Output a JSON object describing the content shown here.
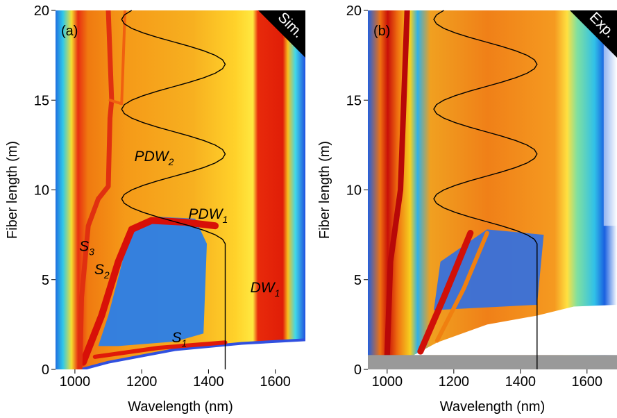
{
  "chart_data": [
    {
      "type": "heatmap",
      "panel_label": "(a)",
      "corner_label": "Sim.",
      "x_label": "Wavelength (nm)",
      "y_label": "Fiber length (m)",
      "xlim": [
        942,
        1690
      ],
      "ylim": [
        0,
        20
      ],
      "xticks": [
        1000,
        1200,
        1400,
        1600
      ],
      "yticks": [
        0,
        5,
        10,
        15,
        20
      ],
      "annotations": [
        {
          "text": "PDW",
          "sub": "2"
        },
        {
          "text": "PDW",
          "sub": "1"
        },
        {
          "text": "S",
          "sub": "3"
        },
        {
          "text": "S",
          "sub": "2"
        },
        {
          "text": "S",
          "sub": "1"
        },
        {
          "text": "DW",
          "sub": "1"
        }
      ],
      "line": {
        "color": "#000000",
        "x": [
          1450,
          1450,
          1442,
          1420,
          1386,
          1343,
          1295,
          1247,
          1204,
          1170,
          1148,
          1140,
          1148,
          1170,
          1204,
          1247,
          1295,
          1343,
          1386,
          1420,
          1442,
          1450,
          1442,
          1420,
          1386,
          1343,
          1295,
          1247,
          1204,
          1170,
          1148,
          1140,
          1148,
          1170,
          1204,
          1247,
          1295,
          1343,
          1386,
          1420,
          1442,
          1450,
          1442,
          1420,
          1386,
          1343,
          1295,
          1247,
          1204,
          1170,
          1148,
          1140,
          1148,
          1170
        ],
        "y": [
          0,
          7,
          7.25,
          7.5,
          7.75,
          8,
          8.25,
          8.5,
          8.75,
          9,
          9.25,
          9.5,
          9.75,
          10,
          10.25,
          10.5,
          10.75,
          11,
          11.25,
          11.5,
          11.75,
          12,
          12.25,
          12.5,
          12.75,
          13,
          13.25,
          13.5,
          13.75,
          14,
          14.25,
          14.5,
          14.75,
          15,
          15.25,
          15.5,
          15.75,
          16,
          16.25,
          16.5,
          16.75,
          17,
          17.25,
          17.5,
          17.75,
          18,
          18.25,
          18.5,
          18.75,
          19,
          19.25,
          19.5,
          19.75,
          20
        ]
      }
    },
    {
      "type": "heatmap",
      "panel_label": "(b)",
      "corner_label": "Exp.",
      "x_label": "Wavelength (nm)",
      "y_label": "Fiber length (m)",
      "xlim": [
        942,
        1690
      ],
      "ylim": [
        0,
        20
      ],
      "xticks": [
        1000,
        1200,
        1400,
        1600
      ],
      "yticks": [
        0,
        5,
        10,
        15,
        20
      ],
      "annotations": [],
      "line": {
        "color": "#000000",
        "x": [
          1450,
          1450,
          1442,
          1420,
          1386,
          1343,
          1295,
          1247,
          1204,
          1170,
          1148,
          1140,
          1148,
          1170,
          1204,
          1247,
          1295,
          1343,
          1386,
          1420,
          1442,
          1450,
          1442,
          1420,
          1386,
          1343,
          1295,
          1247,
          1204,
          1170,
          1148,
          1140,
          1148,
          1170,
          1204,
          1247,
          1295,
          1343,
          1386,
          1420,
          1442,
          1450,
          1442,
          1420,
          1386,
          1343,
          1295,
          1247,
          1204,
          1170,
          1148,
          1140,
          1148,
          1170
        ],
        "y": [
          0,
          7,
          7.25,
          7.5,
          7.75,
          8,
          8.25,
          8.5,
          8.75,
          9,
          9.25,
          9.5,
          9.75,
          10,
          10.25,
          10.5,
          10.75,
          11,
          11.25,
          11.5,
          11.75,
          12,
          12.25,
          12.5,
          12.75,
          13,
          13.25,
          13.5,
          13.75,
          14,
          14.25,
          14.5,
          14.75,
          15,
          15.25,
          15.5,
          15.75,
          16,
          16.25,
          16.5,
          16.75,
          17,
          17.25,
          17.5,
          17.75,
          18,
          18.25,
          18.5,
          18.75,
          19,
          19.25,
          19.5,
          19.75,
          20
        ]
      }
    }
  ]
}
